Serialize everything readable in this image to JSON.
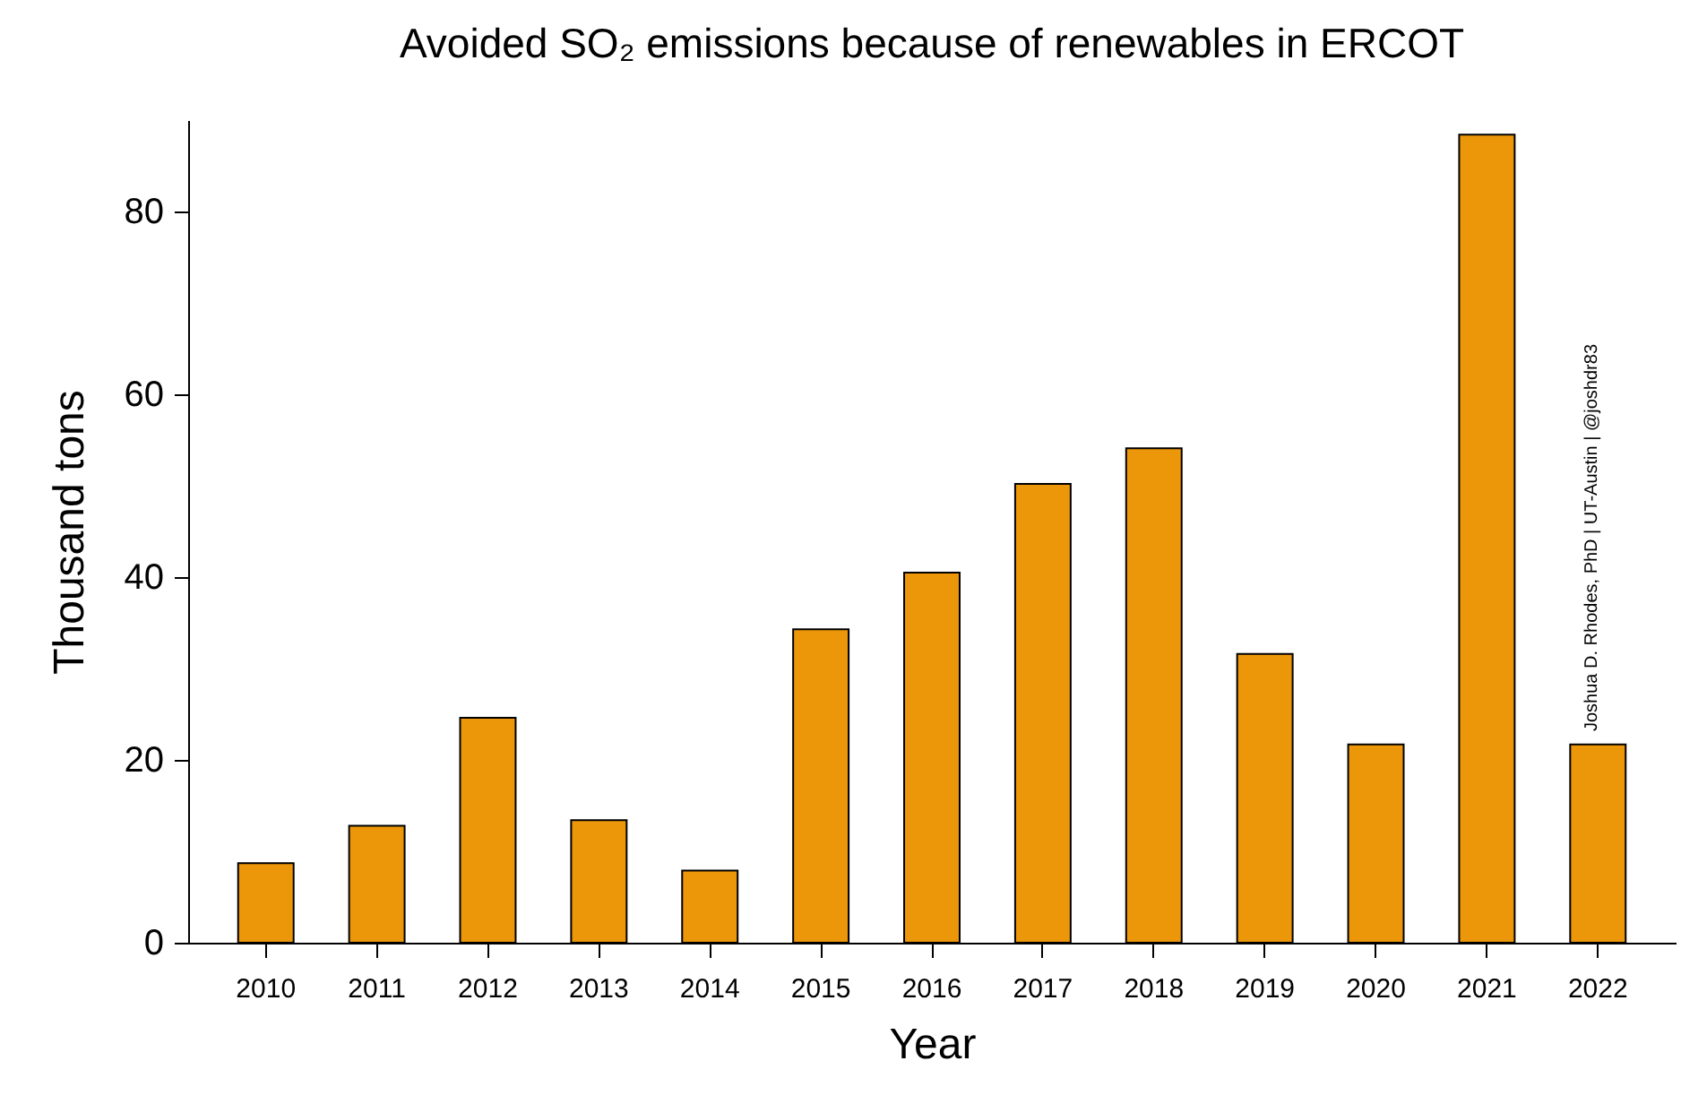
{
  "chart_data": {
    "type": "bar",
    "title": "Avoided SO₂ emissions because of renewables in ERCOT",
    "xlabel": "Year",
    "ylabel": "Thousand tons",
    "categories": [
      "2010",
      "2011",
      "2012",
      "2013",
      "2014",
      "2015",
      "2016",
      "2017",
      "2018",
      "2019",
      "2020",
      "2021",
      "2022"
    ],
    "values": [
      8.7,
      12.8,
      24.6,
      13.4,
      7.9,
      34.3,
      40.5,
      50.2,
      54.1,
      31.6,
      21.7,
      88.4,
      21.7
    ],
    "color": "#ec9709",
    "ylim": [
      0,
      90
    ],
    "yticks": [
      0,
      20,
      40,
      60,
      80
    ],
    "grid": false,
    "annotations": [
      "Joshua D. Rhodes, PhD | UT-Austin | @joshdr83"
    ]
  }
}
